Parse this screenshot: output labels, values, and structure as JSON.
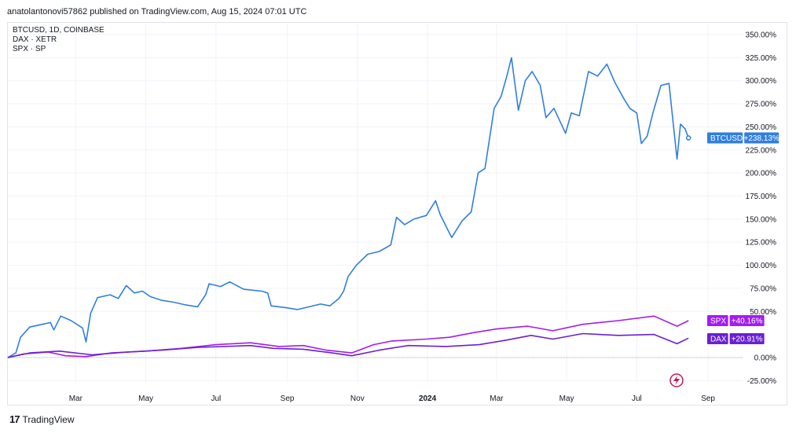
{
  "header": {
    "publish_line": "anatolantonovi57862 published on TradingView.com, Aug 15, 2024 07:01 UTC"
  },
  "legend": {
    "lines": [
      "BTCUSD, 1D, COINBASE",
      "DAX · XETR",
      "SPX · SP"
    ]
  },
  "footer": {
    "brand": "TradingView",
    "logo_text": "17"
  },
  "icons": {
    "publish_bolt": "lightning-icon"
  },
  "colors": {
    "btc": "#2f7fe0",
    "spx": "#a21cf2",
    "dax": "#6a1fd6",
    "zero_line": "#b2b5be",
    "grid": "#f0f3fa",
    "icon": "#c2185b"
  },
  "chart_data": {
    "type": "line",
    "title": "",
    "xlabel": "",
    "ylabel": "",
    "ylim": [
      -35,
      360
    ],
    "y_ticks": [
      "350.00%",
      "325.00%",
      "300.00%",
      "275.00%",
      "250.00%",
      "225.00%",
      "200.00%",
      "175.00%",
      "150.00%",
      "125.00%",
      "100.00%",
      "75.00%",
      "50.00%",
      "0.00%",
      "-25.00%"
    ],
    "y_tick_values": [
      350,
      325,
      300,
      275,
      250,
      225,
      200,
      175,
      150,
      125,
      100,
      75,
      50,
      0,
      -25
    ],
    "x_ticks": [
      "Mar",
      "May",
      "Jul",
      "Sep",
      "Nov",
      "2024",
      "Mar",
      "May",
      "Jul",
      "Sep"
    ],
    "x_tick_dates": [
      "2023-03-01",
      "2023-05-01",
      "2023-07-01",
      "2023-09-01",
      "2023-11-01",
      "2024-01-01",
      "2024-03-01",
      "2024-05-01",
      "2024-07-01",
      "2024-09-01"
    ],
    "x_range": [
      "2023-01-01",
      "2024-10-01"
    ],
    "series": [
      {
        "name": "BTCUSD",
        "last_label": "+238.13%",
        "points": [
          [
            "2023-01-01",
            0
          ],
          [
            "2023-01-08",
            5
          ],
          [
            "2023-01-12",
            22
          ],
          [
            "2023-01-20",
            33
          ],
          [
            "2023-01-31",
            36
          ],
          [
            "2023-02-07",
            38
          ],
          [
            "2023-02-10",
            30
          ],
          [
            "2023-02-16",
            45
          ],
          [
            "2023-02-25",
            40
          ],
          [
            "2023-03-07",
            32
          ],
          [
            "2023-03-10",
            17
          ],
          [
            "2023-03-14",
            48
          ],
          [
            "2023-03-20",
            65
          ],
          [
            "2023-03-31",
            68
          ],
          [
            "2023-04-07",
            64
          ],
          [
            "2023-04-14",
            78
          ],
          [
            "2023-04-21",
            70
          ],
          [
            "2023-04-28",
            72
          ],
          [
            "2023-05-05",
            66
          ],
          [
            "2023-05-15",
            62
          ],
          [
            "2023-05-25",
            60
          ],
          [
            "2023-06-05",
            57
          ],
          [
            "2023-06-15",
            55
          ],
          [
            "2023-06-22",
            68
          ],
          [
            "2023-06-25",
            80
          ],
          [
            "2023-07-05",
            77
          ],
          [
            "2023-07-13",
            82
          ],
          [
            "2023-07-25",
            74
          ],
          [
            "2023-08-10",
            72
          ],
          [
            "2023-08-15",
            70
          ],
          [
            "2023-08-18",
            56
          ],
          [
            "2023-08-31",
            54
          ],
          [
            "2023-09-10",
            52
          ],
          [
            "2023-09-20",
            55
          ],
          [
            "2023-09-30",
            58
          ],
          [
            "2023-10-08",
            56
          ],
          [
            "2023-10-16",
            64
          ],
          [
            "2023-10-20",
            72
          ],
          [
            "2023-10-24",
            88
          ],
          [
            "2023-10-31",
            100
          ],
          [
            "2023-11-10",
            112
          ],
          [
            "2023-11-20",
            115
          ],
          [
            "2023-11-30",
            122
          ],
          [
            "2023-12-05",
            152
          ],
          [
            "2023-12-12",
            144
          ],
          [
            "2023-12-20",
            150
          ],
          [
            "2023-12-31",
            154
          ],
          [
            "2024-01-08",
            170
          ],
          [
            "2024-01-12",
            155
          ],
          [
            "2024-01-22",
            130
          ],
          [
            "2024-01-31",
            148
          ],
          [
            "2024-02-08",
            158
          ],
          [
            "2024-02-14",
            200
          ],
          [
            "2024-02-20",
            205
          ],
          [
            "2024-02-28",
            270
          ],
          [
            "2024-03-05",
            283
          ],
          [
            "2024-03-10",
            305
          ],
          [
            "2024-03-14",
            325
          ],
          [
            "2024-03-20",
            268
          ],
          [
            "2024-03-26",
            300
          ],
          [
            "2024-04-01",
            310
          ],
          [
            "2024-04-08",
            295
          ],
          [
            "2024-04-13",
            260
          ],
          [
            "2024-04-20",
            270
          ],
          [
            "2024-04-30",
            243
          ],
          [
            "2024-05-05",
            265
          ],
          [
            "2024-05-12",
            262
          ],
          [
            "2024-05-20",
            310
          ],
          [
            "2024-05-28",
            305
          ],
          [
            "2024-06-05",
            318
          ],
          [
            "2024-06-12",
            298
          ],
          [
            "2024-06-20",
            280
          ],
          [
            "2024-06-25",
            270
          ],
          [
            "2024-07-01",
            265
          ],
          [
            "2024-07-05",
            232
          ],
          [
            "2024-07-10",
            240
          ],
          [
            "2024-07-15",
            265
          ],
          [
            "2024-07-22",
            295
          ],
          [
            "2024-07-29",
            297
          ],
          [
            "2024-08-02",
            250
          ],
          [
            "2024-08-05",
            215
          ],
          [
            "2024-08-08",
            253
          ],
          [
            "2024-08-12",
            248
          ],
          [
            "2024-08-15",
            238
          ]
        ]
      },
      {
        "name": "SPX",
        "last_label": "+40.16%",
        "points": [
          [
            "2023-01-01",
            0
          ],
          [
            "2023-01-15",
            4
          ],
          [
            "2023-02-05",
            6
          ],
          [
            "2023-02-20",
            2
          ],
          [
            "2023-03-10",
            1
          ],
          [
            "2023-04-01",
            5
          ],
          [
            "2023-05-01",
            7
          ],
          [
            "2023-06-01",
            10
          ],
          [
            "2023-07-01",
            14
          ],
          [
            "2023-07-31",
            16
          ],
          [
            "2023-08-25",
            12
          ],
          [
            "2023-09-15",
            13
          ],
          [
            "2023-10-05",
            8
          ],
          [
            "2023-10-27",
            5
          ],
          [
            "2023-11-15",
            14
          ],
          [
            "2023-12-01",
            18
          ],
          [
            "2023-12-31",
            20
          ],
          [
            "2024-01-20",
            22
          ],
          [
            "2024-02-10",
            27
          ],
          [
            "2024-03-01",
            31
          ],
          [
            "2024-03-28",
            34
          ],
          [
            "2024-04-19",
            29
          ],
          [
            "2024-05-15",
            36
          ],
          [
            "2024-06-15",
            40
          ],
          [
            "2024-07-16",
            45
          ],
          [
            "2024-08-05",
            34
          ],
          [
            "2024-08-15",
            40
          ]
        ]
      },
      {
        "name": "DAX",
        "last_label": "+20.91%",
        "points": [
          [
            "2023-01-01",
            0
          ],
          [
            "2023-01-20",
            5
          ],
          [
            "2023-02-15",
            7
          ],
          [
            "2023-03-15",
            3
          ],
          [
            "2023-04-15",
            6
          ],
          [
            "2023-05-15",
            8
          ],
          [
            "2023-06-15",
            11
          ],
          [
            "2023-07-31",
            13
          ],
          [
            "2023-08-20",
            10
          ],
          [
            "2023-09-15",
            9
          ],
          [
            "2023-10-10",
            5
          ],
          [
            "2023-10-27",
            2
          ],
          [
            "2023-11-20",
            8
          ],
          [
            "2023-12-15",
            13
          ],
          [
            "2024-01-17",
            12
          ],
          [
            "2024-02-15",
            14
          ],
          [
            "2024-03-10",
            19
          ],
          [
            "2024-03-31",
            24
          ],
          [
            "2024-04-19",
            20
          ],
          [
            "2024-05-15",
            26
          ],
          [
            "2024-06-15",
            24
          ],
          [
            "2024-07-16",
            25
          ],
          [
            "2024-08-05",
            15
          ],
          [
            "2024-08-15",
            21
          ]
        ]
      }
    ]
  }
}
